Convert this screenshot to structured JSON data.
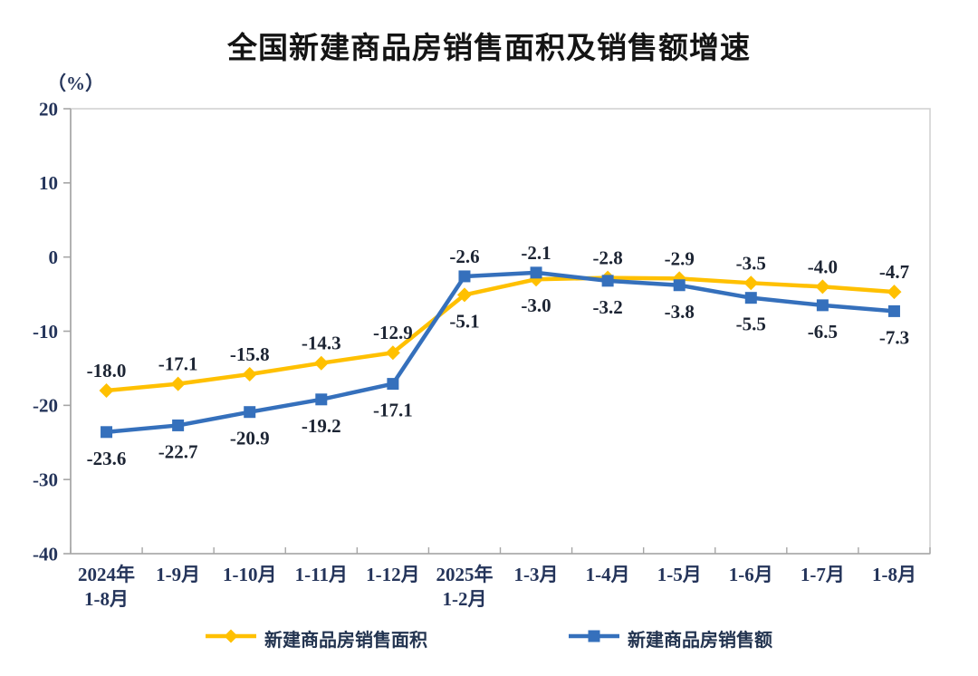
{
  "chart_data": {
    "type": "line",
    "title": "全国新建商品房销售面积及销售额增速",
    "unit_label": "（%）",
    "categories": [
      [
        "2024年",
        "1-8月"
      ],
      [
        "1-9月"
      ],
      [
        "1-10月"
      ],
      [
        "1-11月"
      ],
      [
        "1-12月"
      ],
      [
        "2025年",
        "1-2月"
      ],
      [
        "1-3月"
      ],
      [
        "1-4月"
      ],
      [
        "1-5月"
      ],
      [
        "1-6月"
      ],
      [
        "1-7月"
      ],
      [
        "1-8月"
      ]
    ],
    "series": [
      {
        "name": "新建商品房销售面积",
        "marker": "diamond",
        "color": "#FFC000",
        "values": [
          -18.0,
          -17.1,
          -15.8,
          -14.3,
          -12.9,
          -5.1,
          -3.0,
          -2.8,
          -2.9,
          -3.5,
          -4.0,
          -4.7
        ]
      },
      {
        "name": "新建商品房销售额",
        "marker": "square",
        "color": "#3570BC",
        "values": [
          -23.6,
          -22.7,
          -20.9,
          -19.2,
          -17.1,
          -2.6,
          -2.1,
          -3.2,
          -3.8,
          -5.5,
          -6.5,
          -7.3
        ]
      }
    ],
    "yticks": [
      20,
      10,
      0,
      -10,
      -20,
      -30,
      -40
    ],
    "ylim": [
      -40,
      20
    ],
    "grid": false,
    "legend_position": "bottom",
    "colors": {
      "axis_text": "#24345A",
      "data_label_text": "#1C2433",
      "plot_border": "#D2D2D2",
      "axis_line": "#A6A6A6"
    }
  }
}
